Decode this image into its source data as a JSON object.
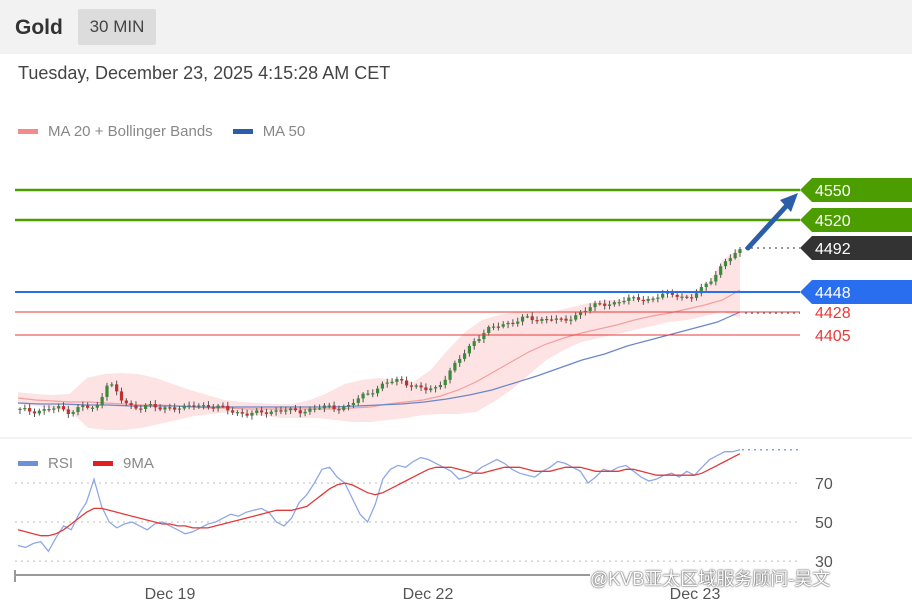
{
  "header": {
    "instrument": "Gold",
    "timeframe": "30 MIN",
    "datetime": "Tuesday, December 23, 2025 4:15:28 AM CET"
  },
  "legend_main": [
    {
      "label": "MA 20 + Bollinger Bands",
      "color": "#f28c8c"
    },
    {
      "label": "MA 50",
      "color": "#2a5ea8"
    }
  ],
  "legend_rsi": [
    {
      "label": "RSI",
      "color": "#6f8fdc"
    },
    {
      "label": "9MA",
      "color": "#e02020"
    }
  ],
  "watermark": "@KVB亚太区域服务顾问-吴文",
  "colors": {
    "green_level": "#4c9e00",
    "blue_level": "#2a6ef0",
    "red_level": "#e83a3a",
    "current_price": "#333333",
    "bull_candle": "#3a8a3a",
    "bear_candle": "#c03030",
    "band_fill": "#fde3e3",
    "arrow": "#2a5ea8"
  },
  "chart_data": [
    {
      "type": "candlestick",
      "title": "Gold",
      "x_ticks": [
        "Dec 19",
        "Dec 22",
        "Dec 23"
      ],
      "ylim": [
        4305,
        4575
      ],
      "price_levels": [
        {
          "value": 4550,
          "label": "4550",
          "kind": "resistance"
        },
        {
          "value": 4520,
          "label": "4520",
          "kind": "resistance"
        },
        {
          "value": 4492,
          "label": "4492",
          "kind": "current"
        },
        {
          "value": 4448,
          "label": "4448",
          "kind": "support"
        },
        {
          "value": 4428,
          "label": "4428",
          "kind": "support"
        },
        {
          "value": 4405,
          "label": "4405",
          "kind": "support"
        }
      ],
      "close_path": [
        4330,
        4329,
        4330,
        4332,
        4328,
        4334,
        4330,
        4360,
        4340,
        4332,
        4335,
        4331,
        4333,
        4332,
        4335,
        4334,
        4332,
        4328,
        4326,
        4327,
        4329,
        4330,
        4328,
        4331,
        4333,
        4332,
        4334,
        4343,
        4350,
        4357,
        4360,
        4355,
        4350,
        4352,
        4368,
        4384,
        4400,
        4410,
        4415,
        4418,
        4422,
        4420,
        4422,
        4418,
        4425,
        4432,
        4436,
        4437,
        4440,
        4442,
        4440,
        4446,
        4446,
        4440,
        4452,
        4465,
        4480,
        4490
      ],
      "ma20": [
        4342,
        4340,
        4339,
        4338,
        4338,
        4337,
        4336,
        4335,
        4335,
        4334,
        4333,
        4332,
        4332,
        4331,
        4331,
        4331,
        4331,
        4331,
        4331,
        4332,
        4333,
        4336,
        4338,
        4340,
        4344,
        4350,
        4358,
        4368,
        4378,
        4388,
        4396,
        4402,
        4407,
        4411,
        4415,
        4420,
        4424,
        4427,
        4431,
        4435,
        4440,
        4450
      ],
      "bb_upper": [
        4348,
        4346,
        4345,
        4346,
        4362,
        4366,
        4367,
        4366,
        4362,
        4356,
        4350,
        4345,
        4340,
        4338,
        4337,
        4336,
        4336,
        4340,
        4347,
        4356,
        4360,
        4362,
        4360,
        4358,
        4370,
        4390,
        4408,
        4420,
        4425,
        4428,
        4428,
        4428,
        4432,
        4436,
        4440,
        4440,
        4440,
        4442,
        4444,
        4448,
        4452,
        4480,
        4492
      ],
      "bb_lower": [
        4336,
        4334,
        4332,
        4328,
        4312,
        4310,
        4310,
        4312,
        4316,
        4320,
        4324,
        4326,
        4328,
        4326,
        4324,
        4322,
        4322,
        4322,
        4320,
        4318,
        4318,
        4320,
        4322,
        4325,
        4326,
        4326,
        4328,
        4338,
        4350,
        4365,
        4380,
        4390,
        4398,
        4402,
        4406,
        4410,
        4414,
        4418,
        4420,
        4424,
        4428,
        4422
      ],
      "ma50": [
        4337,
        4336,
        4336,
        4335,
        4335,
        4334,
        4334,
        4334,
        4333,
        4333,
        4333,
        4333,
        4333,
        4333,
        4333,
        4334,
        4335,
        4336,
        4338,
        4341,
        4345,
        4350,
        4357,
        4364,
        4372,
        4380,
        4386,
        4394,
        4400,
        4406,
        4412,
        4418,
        4428
      ],
      "forecast_arrow": {
        "from": 4492,
        "to": 4550
      }
    },
    {
      "type": "line",
      "title": "RSI",
      "y_ticks": [
        70,
        50,
        30
      ],
      "ylim": [
        28,
        92
      ],
      "series": [
        {
          "name": "RSI",
          "values": [
            38,
            37,
            39,
            40,
            35,
            42,
            48,
            46,
            54,
            60,
            72,
            58,
            50,
            47,
            49,
            50,
            48,
            46,
            49,
            50,
            48,
            46,
            44,
            45,
            47,
            49,
            50,
            52,
            54,
            53,
            55,
            56,
            57,
            55,
            50,
            48,
            52,
            60,
            64,
            70,
            77,
            78,
            73,
            70,
            62,
            54,
            50,
            59,
            72,
            77,
            79,
            78,
            81,
            83,
            82,
            80,
            78,
            76,
            72,
            73,
            75,
            78,
            80,
            82,
            80,
            77,
            75,
            74,
            73,
            76,
            78,
            81,
            80,
            78,
            76,
            70,
            73,
            77,
            76,
            78,
            79,
            76,
            73,
            71,
            72,
            74,
            75,
            73,
            76,
            74,
            78,
            82,
            84,
            86,
            86,
            87
          ]
        },
        {
          "name": "9MA",
          "values": [
            46,
            45,
            44,
            43,
            43,
            44,
            46,
            49,
            52,
            55,
            57,
            57,
            56,
            55,
            54,
            53,
            52,
            51,
            50,
            49,
            49,
            48,
            48,
            47,
            47,
            47,
            48,
            49,
            50,
            51,
            52,
            53,
            54,
            55,
            56,
            56,
            56,
            57,
            58,
            61,
            64,
            67,
            69,
            70,
            69,
            67,
            65,
            64,
            65,
            67,
            69,
            71,
            73,
            75,
            77,
            78,
            78,
            78,
            77,
            76,
            75,
            75,
            76,
            77,
            78,
            78,
            78,
            77,
            76,
            76,
            76,
            77,
            78,
            78,
            78,
            77,
            76,
            76,
            76,
            76,
            77,
            77,
            76,
            75,
            74,
            74,
            74,
            74,
            74,
            74,
            75,
            77,
            79,
            81,
            83,
            85
          ]
        }
      ]
    }
  ]
}
